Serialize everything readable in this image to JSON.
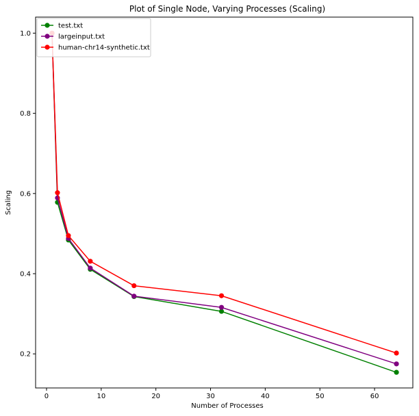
{
  "chart_data": {
    "type": "line",
    "title": "Plot of Single Node, Varying Processes (Scaling)",
    "xlabel": "Number of Processes",
    "ylabel": "Scaling",
    "xlim": [
      -2,
      67
    ],
    "ylim": [
      0.115,
      1.04
    ],
    "x_ticks": [
      0,
      10,
      20,
      30,
      40,
      50,
      60
    ],
    "y_ticks": [
      0.2,
      0.4,
      0.6,
      0.8,
      1.0
    ],
    "x_tick_labels": [
      "0",
      "10",
      "20",
      "30",
      "40",
      "50",
      "60"
    ],
    "y_tick_labels": [
      "0.2",
      "0.4",
      "0.6",
      "0.8",
      "1.0"
    ],
    "grid": false,
    "legend_position": "top-left",
    "x": [
      1,
      2,
      4,
      8,
      16,
      32,
      64
    ],
    "series": [
      {
        "name": "test.txt",
        "color": "#008000",
        "values": [
          1.0,
          0.578,
          0.484,
          0.411,
          0.343,
          0.306,
          0.154
        ]
      },
      {
        "name": "largeinput.txt",
        "color": "#800080",
        "values": [
          1.0,
          0.589,
          0.488,
          0.414,
          0.344,
          0.316,
          0.175
        ]
      },
      {
        "name": "human-chr14-synthetic.txt",
        "color": "#ff0000",
        "values": [
          1.0,
          0.602,
          0.495,
          0.431,
          0.37,
          0.345,
          0.202
        ]
      }
    ]
  }
}
